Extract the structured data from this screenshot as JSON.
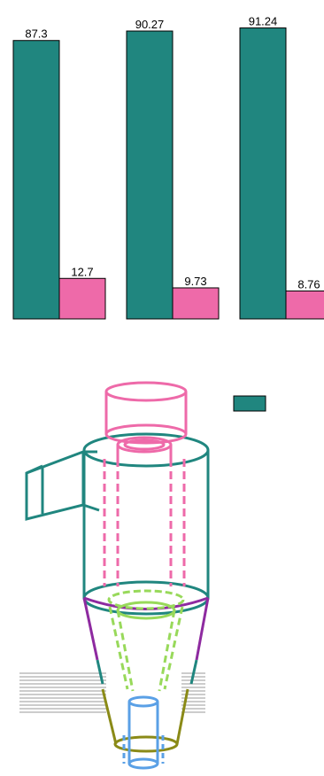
{
  "chart_data": {
    "type": "bar",
    "categories": [
      "",
      "",
      ""
    ],
    "series": [
      {
        "color": "#20867f",
        "values": [
          87.3,
          90.27,
          91.24
        ]
      },
      {
        "color": "#ee6aa9",
        "values": [
          12.7,
          9.73,
          8.76
        ]
      }
    ],
    "value_labels": [
      [
        "87.3",
        "90.27",
        "91.24"
      ],
      [
        "12.7",
        "9.73",
        "8.76"
      ]
    ],
    "ylim": [
      0,
      100
    ],
    "grid": false,
    "legend_swatch_color": "#20867f"
  },
  "diagram": {
    "colors": {
      "body": "#20867f",
      "vortex_finder": "#ee6aa9",
      "cone": "#8e2aa0",
      "inner_vortex": "#98d95a",
      "lower_cone": "#8a8a17",
      "dust_outlet": "#5aa0e6",
      "scan_lines": "#9a9a9a"
    }
  }
}
